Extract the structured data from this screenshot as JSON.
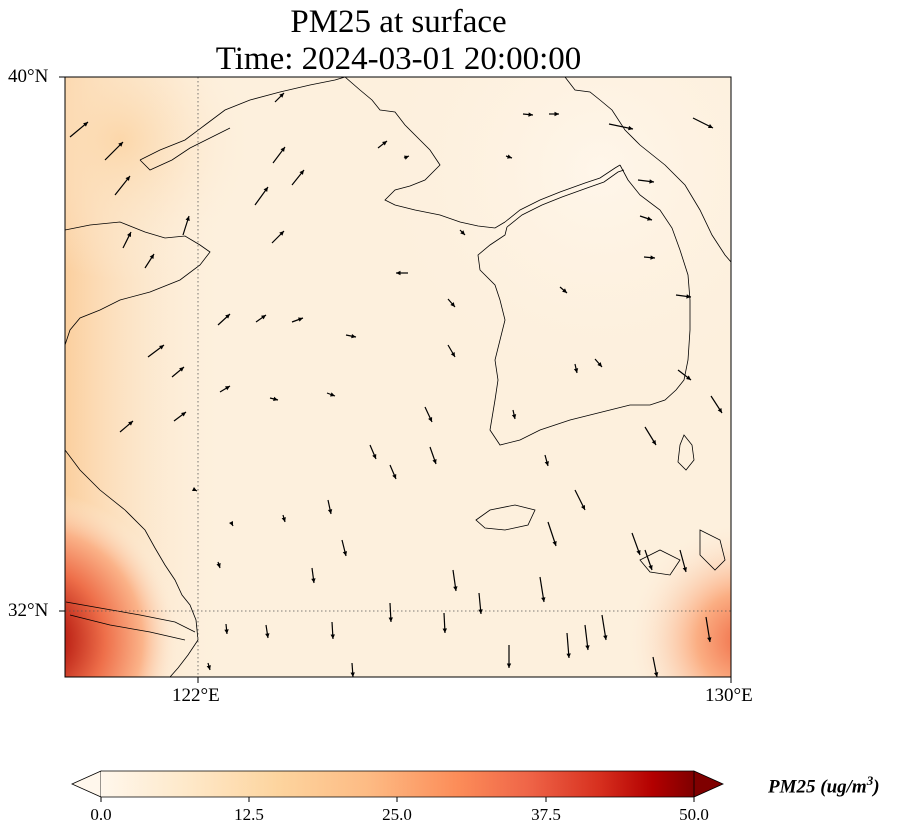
{
  "title": {
    "line1": "PM25 at surface",
    "line2": "Time: 2024-03-01 20:00:00"
  },
  "map": {
    "lat_ticks": [
      "40°N",
      "32°N"
    ],
    "lon_ticks": [
      "122°E",
      "130°E"
    ],
    "extent": {
      "lon_min": 120,
      "lon_max": 130,
      "lat_min": 31,
      "lat_max": 40
    },
    "gridlines": {
      "lon": [
        122
      ],
      "lat": [
        32
      ],
      "style": "dotted"
    },
    "colormap": "OrRd",
    "colors": {
      "background": "#fdf1e0",
      "low": "#fff7ec",
      "mid": "#fdbb84",
      "high": "#d7301f",
      "max": "#7f0000",
      "coastline": "#000000"
    }
  },
  "colorbar": {
    "label_main": "PM25 (ug/m",
    "label_sup": "3",
    "label_close": ")",
    "ticks": [
      "0.0",
      "12.5",
      "25.0",
      "37.5",
      "50.0"
    ],
    "min": 0,
    "max": 50,
    "extend": "both"
  }
}
